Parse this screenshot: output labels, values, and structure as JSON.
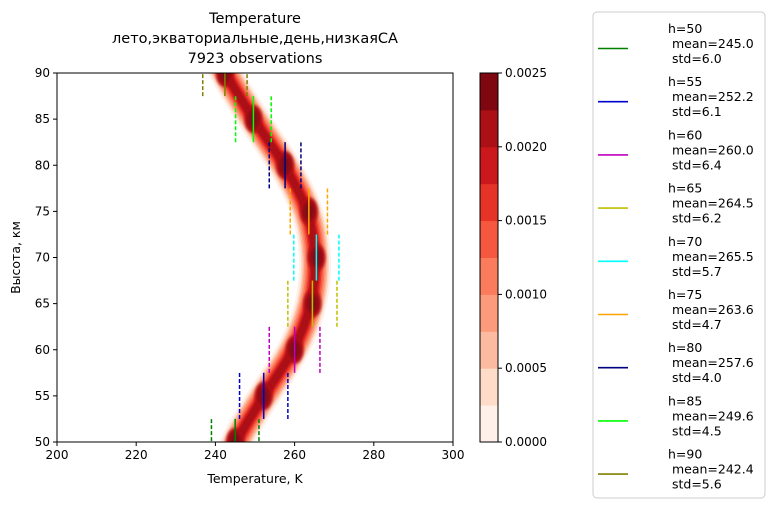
{
  "chart_data": {
    "type": "heatmap",
    "title_lines": [
      "Temperature",
      "лето,экваториальные,день,низкаяСА",
      "7923 observations"
    ],
    "xlabel": "Temperature, K",
    "ylabel": "Высота, км",
    "xlim": [
      200,
      300
    ],
    "ylim": [
      50,
      90
    ],
    "xticks": [
      200,
      220,
      240,
      260,
      280,
      300
    ],
    "yticks": [
      50,
      55,
      60,
      65,
      70,
      75,
      80,
      85,
      90
    ],
    "colorbar": {
      "min": 0.0,
      "max": 0.0025,
      "levels": [
        0.0,
        0.00025,
        0.0005,
        0.00075,
        0.001,
        0.00125,
        0.0015,
        0.00175,
        0.002,
        0.00225,
        0.0025
      ],
      "tick_labels": [
        "0.0000",
        "0.0005",
        "0.0010",
        "0.0015",
        "0.0020",
        "0.0025"
      ],
      "colors": [
        "#fff0e9",
        "#fedcc9",
        "#fcbba1",
        "#fc9b7c",
        "#fb7c5c",
        "#f6573f",
        "#e63328",
        "#cb181d",
        "#ab1016",
        "#7f0712"
      ]
    },
    "series": [
      {
        "h": 50,
        "mean": 245.0,
        "std": 6.0,
        "color": "#008000",
        "label": "h=50\n mean=245.0\n std=6.0"
      },
      {
        "h": 55,
        "mean": 252.2,
        "std": 6.1,
        "color": "#0000cd",
        "label": "h=55\n mean=252.2\n std=6.1"
      },
      {
        "h": 60,
        "mean": 260.0,
        "std": 6.4,
        "color": "#c000c0",
        "label": "h=60\n mean=260.0\n std=6.4"
      },
      {
        "h": 65,
        "mean": 264.5,
        "std": 6.2,
        "color": "#bfbf00",
        "label": "h=65\n mean=264.5\n std=6.2"
      },
      {
        "h": 70,
        "mean": 265.5,
        "std": 5.7,
        "color": "#00ffff",
        "label": "h=70\n mean=265.5\n std=5.7"
      },
      {
        "h": 75,
        "mean": 263.6,
        "std": 4.7,
        "color": "#ffa500",
        "label": "h=75\n mean=263.6\n std=4.7"
      },
      {
        "h": 80,
        "mean": 257.6,
        "std": 4.0,
        "color": "#000080",
        "label": "h=80\n mean=257.6\n std=4.0"
      },
      {
        "h": 85,
        "mean": 249.6,
        "std": 4.5,
        "color": "#00ff00",
        "label": "h=85\n mean=249.6\n std=4.5"
      },
      {
        "h": 90,
        "mean": 242.4,
        "std": 5.6,
        "color": "#808000",
        "label": "h=90\n mean=242.4\n std=5.6"
      }
    ]
  }
}
